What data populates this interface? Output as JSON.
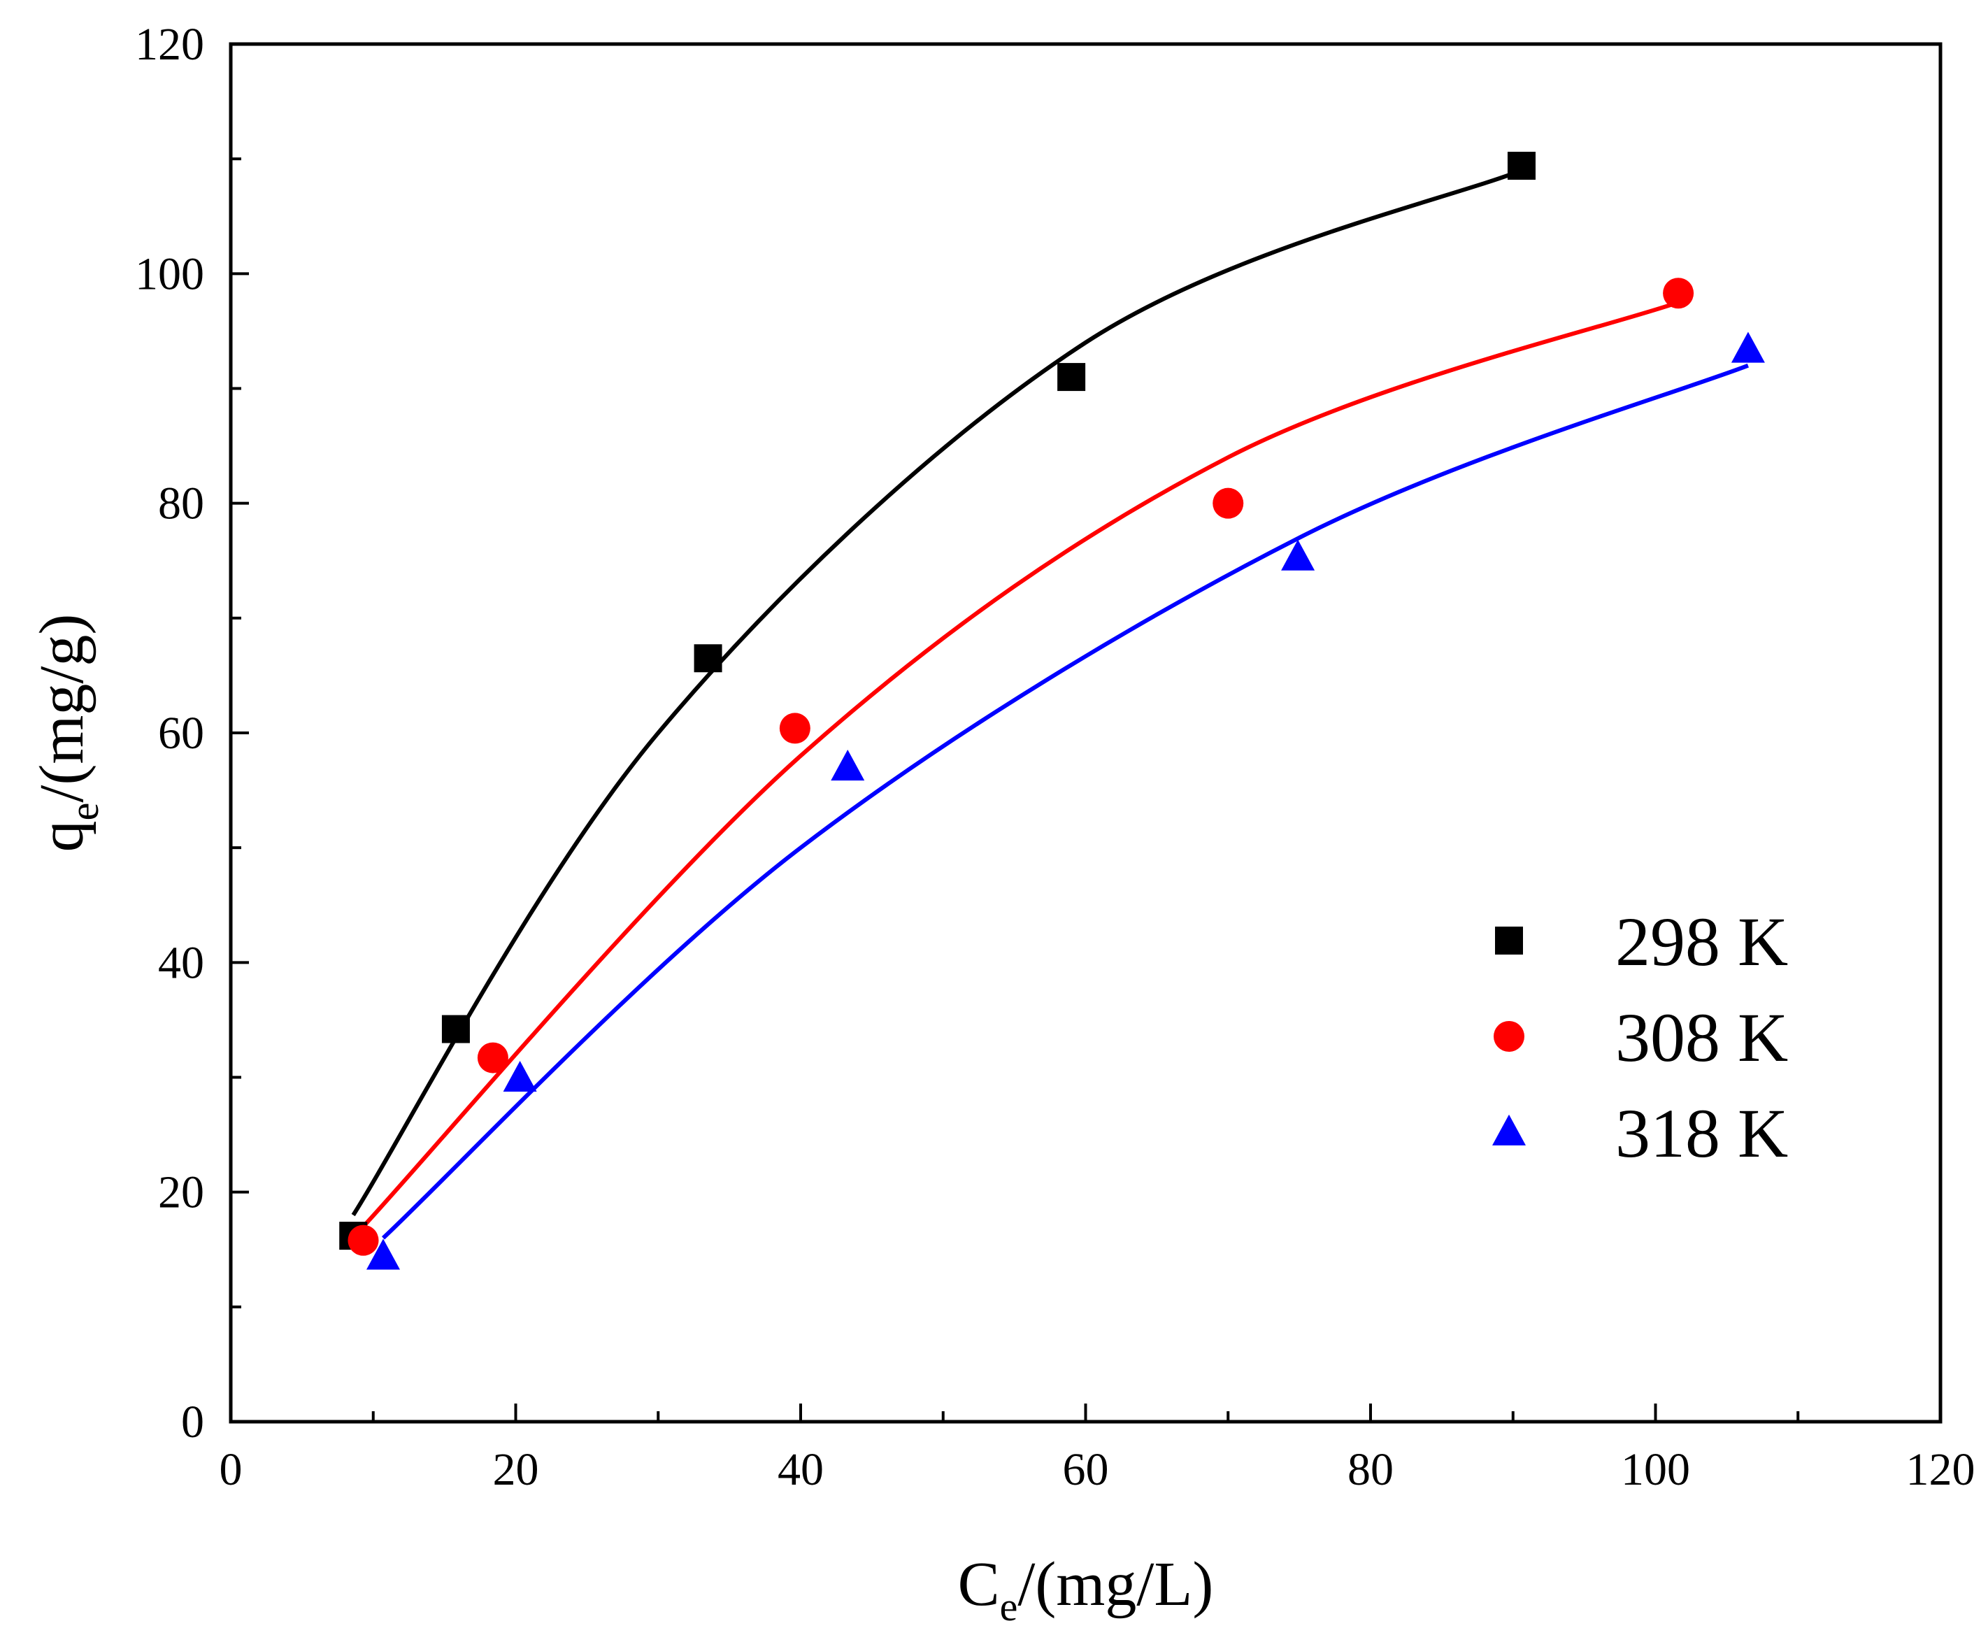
{
  "chart_data": {
    "type": "scatter",
    "title": "",
    "xlabel": {
      "main": "C",
      "sub": "e",
      "rest": "/(mg/L)"
    },
    "ylabel": {
      "main": "q",
      "sub": "e",
      "rest": "/(mg/g)"
    },
    "xlim": [
      0,
      120
    ],
    "ylim": [
      0,
      120
    ],
    "xticks": [
      0,
      20,
      40,
      60,
      80,
      100,
      120
    ],
    "yticks": [
      0,
      20,
      40,
      60,
      80,
      100,
      120
    ],
    "x_minor_step": 10,
    "y_minor_step": 10,
    "grid": false,
    "legend_position": "right-center",
    "series": [
      {
        "name": "298 K",
        "marker": "square",
        "color": "#000000",
        "x": [
          8.6,
          15.8,
          33.5,
          59.0,
          90.6
        ],
        "y": [
          16.2,
          34.2,
          66.5,
          91.0,
          109.4
        ],
        "fit": {
          "x": [
            8.6,
            30,
            60,
            90.6
          ],
          "y": [
            18,
            60,
            94,
            109
          ]
        }
      },
      {
        "name": "308 K",
        "marker": "circle",
        "color": "#ff0000",
        "x": [
          9.3,
          18.4,
          39.6,
          70.0,
          101.6
        ],
        "y": [
          15.8,
          31.7,
          60.4,
          80.0,
          98.3
        ],
        "fit": {
          "x": [
            9.3,
            40,
            70,
            101.6
          ],
          "y": [
            17,
            58,
            84,
            97.5
          ]
        }
      },
      {
        "name": "318 K",
        "marker": "triangle",
        "color": "#0000ff",
        "x": [
          10.7,
          20.3,
          43.3,
          74.9,
          106.5
        ],
        "y": [
          14.4,
          29.9,
          57.0,
          75.3,
          93.4
        ],
        "fit": {
          "x": [
            10.7,
            40,
            75,
            106.5
          ],
          "y": [
            16,
            50,
            77,
            92
          ]
        }
      }
    ]
  }
}
